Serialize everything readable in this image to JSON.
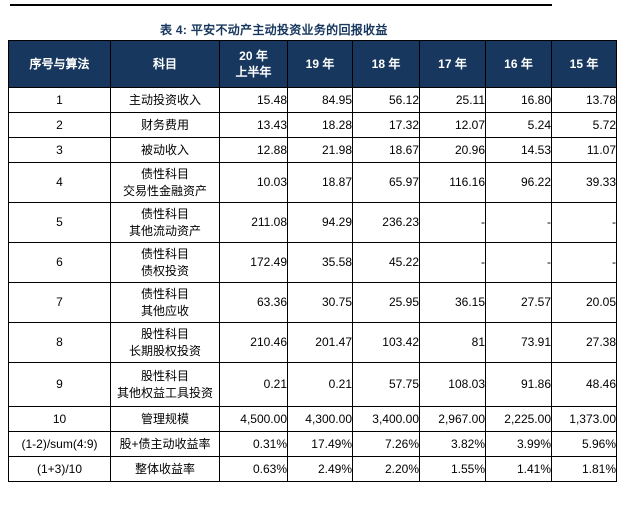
{
  "title": "表 4: 平安不动产主动投资业务的回报收益",
  "colors": {
    "header_bg": "#17375e",
    "title_color": "#17375e",
    "border": "#000000",
    "page_bg": "#ffffff",
    "top_rule": "#000000"
  },
  "table": {
    "header": [
      "序号与算法",
      "科目",
      "20 年\n上半年",
      "19 年",
      "18 年",
      "17 年",
      "16 年",
      "15 年"
    ],
    "rows": [
      {
        "cells": [
          "1",
          "主动投资收入",
          "15.48",
          "84.95",
          "56.12",
          "25.11",
          "16.80",
          "13.78"
        ]
      },
      {
        "cells": [
          "2",
          "财务费用",
          "13.43",
          "18.28",
          "17.32",
          "12.07",
          "5.24",
          "5.72"
        ]
      },
      {
        "cells": [
          "3",
          "被动收入",
          "12.88",
          "21.98",
          "18.67",
          "20.96",
          "14.53",
          "11.07"
        ]
      },
      {
        "cells": [
          "4",
          "债性科目\n交易性金融资产",
          "10.03",
          "18.87",
          "65.97",
          "116.16",
          "96.22",
          "39.33"
        ]
      },
      {
        "cells": [
          "5",
          "债性科目\n其他流动资产",
          "211.08",
          "94.29",
          "236.23",
          "-",
          "-",
          "-"
        ]
      },
      {
        "cells": [
          "6",
          "债性科目\n债权投资",
          "172.49",
          "35.58",
          "45.22",
          "-",
          "-",
          "-"
        ]
      },
      {
        "cells": [
          "7",
          "债性科目\n其他应收",
          "63.36",
          "30.75",
          "25.95",
          "36.15",
          "27.57",
          "20.05"
        ]
      },
      {
        "cells": [
          "8",
          "股性科目\n长期股权投资",
          "210.46",
          "201.47",
          "103.42",
          "81",
          "73.91",
          "27.38"
        ]
      },
      {
        "cells": [
          "9",
          "股性科目\n其他权益工具投资",
          "0.21",
          "0.21",
          "57.75",
          "108.03",
          "91.86",
          "48.46"
        ]
      },
      {
        "cells": [
          "10",
          "管理规模",
          "4,500.00",
          "4,300.00",
          "3,400.00",
          "2,967.00",
          "2,225.00",
          "1,373.00"
        ]
      },
      {
        "cells": [
          "(1-2)/sum(4:9)",
          "股+债主动收益率",
          "0.31%",
          "17.49%",
          "7.26%",
          "3.82%",
          "3.99%",
          "5.96%"
        ]
      },
      {
        "cells": [
          "(1+3)/10",
          "整体收益率",
          "0.63%",
          "2.49%",
          "2.20%",
          "1.55%",
          "1.41%",
          "1.81%"
        ]
      }
    ]
  }
}
